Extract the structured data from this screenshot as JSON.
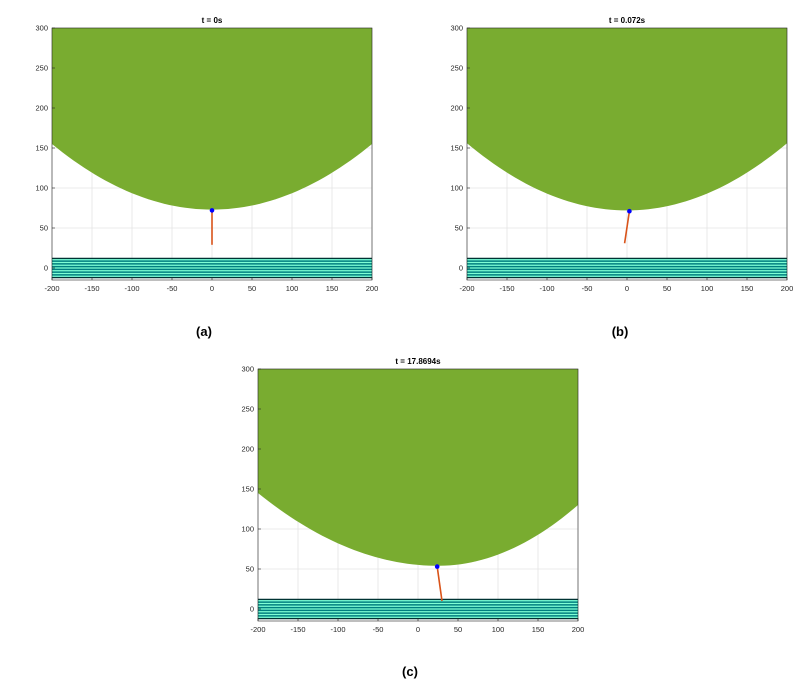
{
  "chart_data": [
    {
      "type": "area",
      "title": "t = 0s",
      "caption": "(a)",
      "xlim": [
        -200,
        200
      ],
      "ylim": [
        -15,
        300
      ],
      "xticks": [
        -200,
        -150,
        -100,
        -50,
        0,
        50,
        100,
        150,
        200
      ],
      "yticks": [
        0,
        50,
        100,
        150,
        200,
        250,
        300
      ],
      "grid": true,
      "bowl_shape": {
        "center_x": 0,
        "bottom_y": 73,
        "edge_y_at_xmin": 155,
        "edge_y_at_xmax": 155
      },
      "bowl_color": "#79ac30",
      "ground_ylim": [
        -12,
        12
      ],
      "ground_color": "#007f7f",
      "ground_stripe_color": "#7fffd4",
      "pendulum": {
        "pivot": [
          0,
          72
        ],
        "tip": [
          0,
          29
        ],
        "rod_color": "#d95319",
        "pivot_color": "#0000ff"
      }
    },
    {
      "type": "area",
      "title": "t = 0.072s",
      "caption": "(b)",
      "xlim": [
        -200,
        200
      ],
      "ylim": [
        -15,
        300
      ],
      "xticks": [
        -200,
        -150,
        -100,
        -50,
        0,
        50,
        100,
        150,
        200
      ],
      "yticks": [
        0,
        50,
        100,
        150,
        200,
        250,
        300
      ],
      "grid": true,
      "bowl_shape": {
        "center_x": 0,
        "bottom_y": 72,
        "edge_y_at_xmin": 156,
        "edge_y_at_xmax": 156
      },
      "bowl_color": "#79ac30",
      "ground_ylim": [
        -12,
        12
      ],
      "ground_color": "#007f7f",
      "ground_stripe_color": "#7fffd4",
      "pendulum": {
        "pivot": [
          3,
          71
        ],
        "tip": [
          -3,
          31
        ],
        "rod_color": "#d95319",
        "pivot_color": "#0000ff"
      }
    },
    {
      "type": "area",
      "title": "t = 17.8694s",
      "caption": "(c)",
      "xlim": [
        -200,
        200
      ],
      "ylim": [
        -15,
        300
      ],
      "xticks": [
        -200,
        -150,
        -100,
        -50,
        0,
        50,
        100,
        150,
        200
      ],
      "yticks": [
        0,
        50,
        100,
        150,
        200,
        250,
        300
      ],
      "grid": true,
      "bowl_shape": {
        "center_x": 25,
        "bottom_y": 54,
        "edge_y_at_xmin": 145,
        "edge_y_at_xmax": 130
      },
      "bowl_color": "#79ac30",
      "ground_ylim": [
        -12,
        12
      ],
      "ground_color": "#007f7f",
      "ground_stripe_color": "#7fffd4",
      "pendulum": {
        "pivot": [
          24,
          53
        ],
        "tip": [
          30,
          10
        ],
        "rod_color": "#d95319",
        "pivot_color": "#0000ff"
      }
    }
  ]
}
